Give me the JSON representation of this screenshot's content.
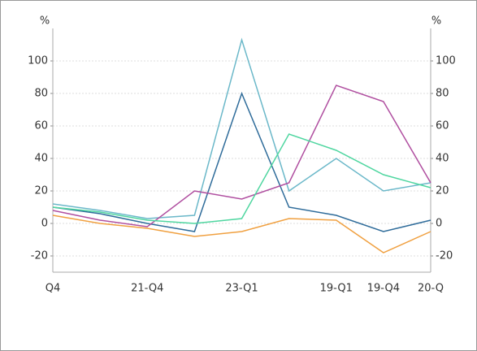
{
  "chart_data": {
    "type": "line",
    "y_label": "%",
    "y2_label": "%",
    "categories": [
      "Q4",
      null,
      "21-Q4",
      null,
      "23-Q1",
      null,
      "19-Q1",
      "19-Q4",
      "20-Q"
    ],
    "ylim": [
      -30,
      120
    ],
    "yticks": [
      -20,
      0,
      20,
      40,
      60,
      80,
      100
    ],
    "y2lim": [
      -30,
      120
    ],
    "y2ticks": [
      -20,
      0,
      20,
      40,
      60,
      80,
      100
    ],
    "grid": true,
    "series": [
      {
        "color": "#6bb8c9",
        "values": [
          12,
          8,
          3,
          5,
          113,
          20,
          40,
          20,
          25
        ]
      },
      {
        "color": "#2f6c9a",
        "values": [
          10,
          6,
          0,
          -5,
          80,
          10,
          5,
          -5,
          2
        ]
      },
      {
        "color": "#b04fa0",
        "values": [
          8,
          2,
          -2,
          20,
          15,
          25,
          85,
          75,
          25
        ]
      },
      {
        "color": "#4fd6a0",
        "values": [
          10,
          7,
          2,
          0,
          3,
          55,
          45,
          30,
          22
        ]
      },
      {
        "color": "#f0a040",
        "values": [
          5,
          0,
          -3,
          -8,
          -5,
          3,
          2,
          -18,
          -5
        ]
      }
    ]
  }
}
